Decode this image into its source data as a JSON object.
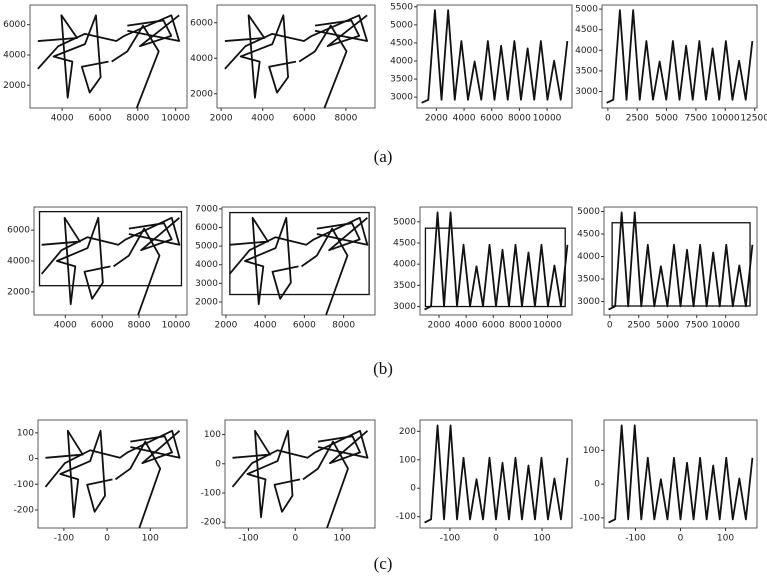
{
  "chart_data": [
    {
      "type": "line",
      "xlim": [
        2300,
        10600
      ],
      "ylim": [
        500,
        7300
      ],
      "xticks": [
        4000,
        6000,
        8000,
        10000
      ],
      "yticks": [
        2000,
        4000,
        6000
      ]
    },
    {
      "type": "line",
      "xlim": [
        1800,
        9400
      ],
      "ylim": [
        1200,
        7000
      ],
      "xticks": [
        2000,
        4000,
        6000,
        8000
      ],
      "yticks": [
        2000,
        4000,
        6000
      ]
    },
    {
      "type": "line",
      "xlim": [
        600,
        11800
      ],
      "ylim": [
        2700,
        5550
      ],
      "xticks": [
        2000,
        4000,
        6000,
        8000,
        10000
      ],
      "yticks": [
        3000,
        3500,
        4000,
        4500,
        5000,
        5500
      ]
    },
    {
      "type": "line",
      "xlim": [
        -500,
        12700
      ],
      "ylim": [
        2600,
        5100
      ],
      "xticks": [
        0,
        2500,
        5000,
        7500,
        10000,
        12500
      ],
      "yticks": [
        3000,
        3500,
        4000,
        4500,
        5000
      ]
    },
    {
      "type": "line",
      "xlim": [
        2300,
        10600
      ],
      "ylim": [
        500,
        7500
      ],
      "xticks": [
        4000,
        6000,
        8000,
        10000
      ],
      "yticks": [
        2000,
        4000,
        6000
      ],
      "box": {
        "x": [
          2600,
          10300
        ],
        "y": [
          2400,
          7200
        ]
      }
    },
    {
      "type": "line",
      "xlim": [
        1800,
        9600
      ],
      "ylim": [
        1300,
        7100
      ],
      "xticks": [
        2000,
        4000,
        6000,
        8000
      ],
      "yticks": [
        2000,
        3000,
        4000,
        5000,
        6000,
        7000
      ],
      "box": {
        "x": [
          2200,
          9300
        ],
        "y": [
          2400,
          6800
        ]
      }
    },
    {
      "type": "line",
      "xlim": [
        600,
        11800
      ],
      "ylim": [
        2800,
        5350
      ],
      "xticks": [
        2000,
        4000,
        6000,
        8000,
        10000
      ],
      "yticks": [
        3000,
        3500,
        4000,
        4500,
        5000
      ],
      "box": {
        "x": [
          1000,
          11300
        ],
        "y": [
          3000,
          4850
        ]
      }
    },
    {
      "type": "line",
      "xlim": [
        -500,
        12700
      ],
      "ylim": [
        2700,
        5100
      ],
      "xticks": [
        0,
        2500,
        5000,
        7500,
        10000
      ],
      "yticks": [
        3000,
        3500,
        4000,
        4500,
        5000
      ],
      "box": {
        "x": [
          200,
          12100
        ],
        "y": [
          2900,
          4750
        ]
      }
    },
    {
      "type": "line",
      "xlim": [
        -160,
        185
      ],
      "ylim": [
        -270,
        150
      ],
      "xticks": [
        -100,
        0,
        100
      ],
      "yticks": [
        -200,
        -100,
        0,
        100
      ]
    },
    {
      "type": "line",
      "xlim": [
        -150,
        170
      ],
      "ylim": [
        -220,
        150
      ],
      "xticks": [
        -100,
        0,
        100
      ],
      "yticks": [
        -200,
        -100,
        0,
        100
      ]
    },
    {
      "type": "line",
      "xlim": [
        -165,
        165
      ],
      "ylim": [
        -140,
        240
      ],
      "xticks": [
        -100,
        0,
        100
      ],
      "yticks": [
        -100,
        0,
        100,
        200
      ]
    },
    {
      "type": "line",
      "xlim": [
        -170,
        170
      ],
      "ylim": [
        -130,
        190
      ],
      "xticks": [
        -100,
        0,
        100
      ],
      "yticks": [
        -100,
        0,
        100
      ]
    }
  ],
  "panel_labels": [
    "(a)",
    "(b)",
    "(c)"
  ]
}
